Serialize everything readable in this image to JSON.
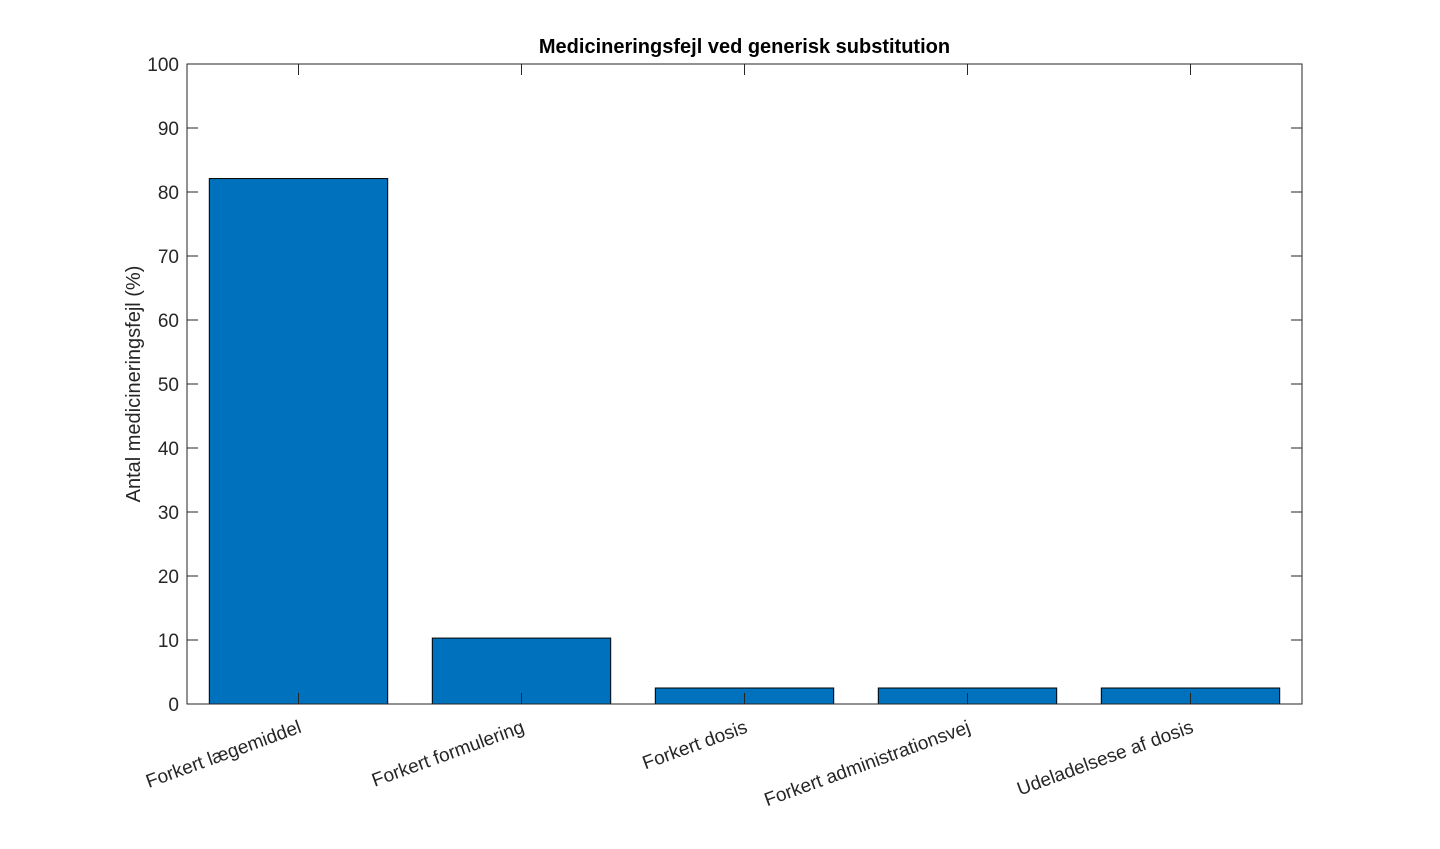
{
  "chart_data": {
    "type": "bar",
    "title": "Medicineringsfejl ved generisk substitution",
    "xlabel": "",
    "ylabel": "Antal medicineringsfejl (%)",
    "categories": [
      "Forkert lægemiddel",
      "Forkert formulering",
      "Forkert dosis",
      "Forkert administrationsvej",
      "Udeladelsese af dosis"
    ],
    "values": [
      82.1,
      10.3,
      2.5,
      2.5,
      2.5
    ],
    "ylim": [
      0,
      100
    ],
    "yticks": [
      0,
      10,
      20,
      30,
      40,
      50,
      60,
      70,
      80,
      90,
      100
    ],
    "bar_color": "#0072BD",
    "grid": false,
    "legend": "none"
  }
}
